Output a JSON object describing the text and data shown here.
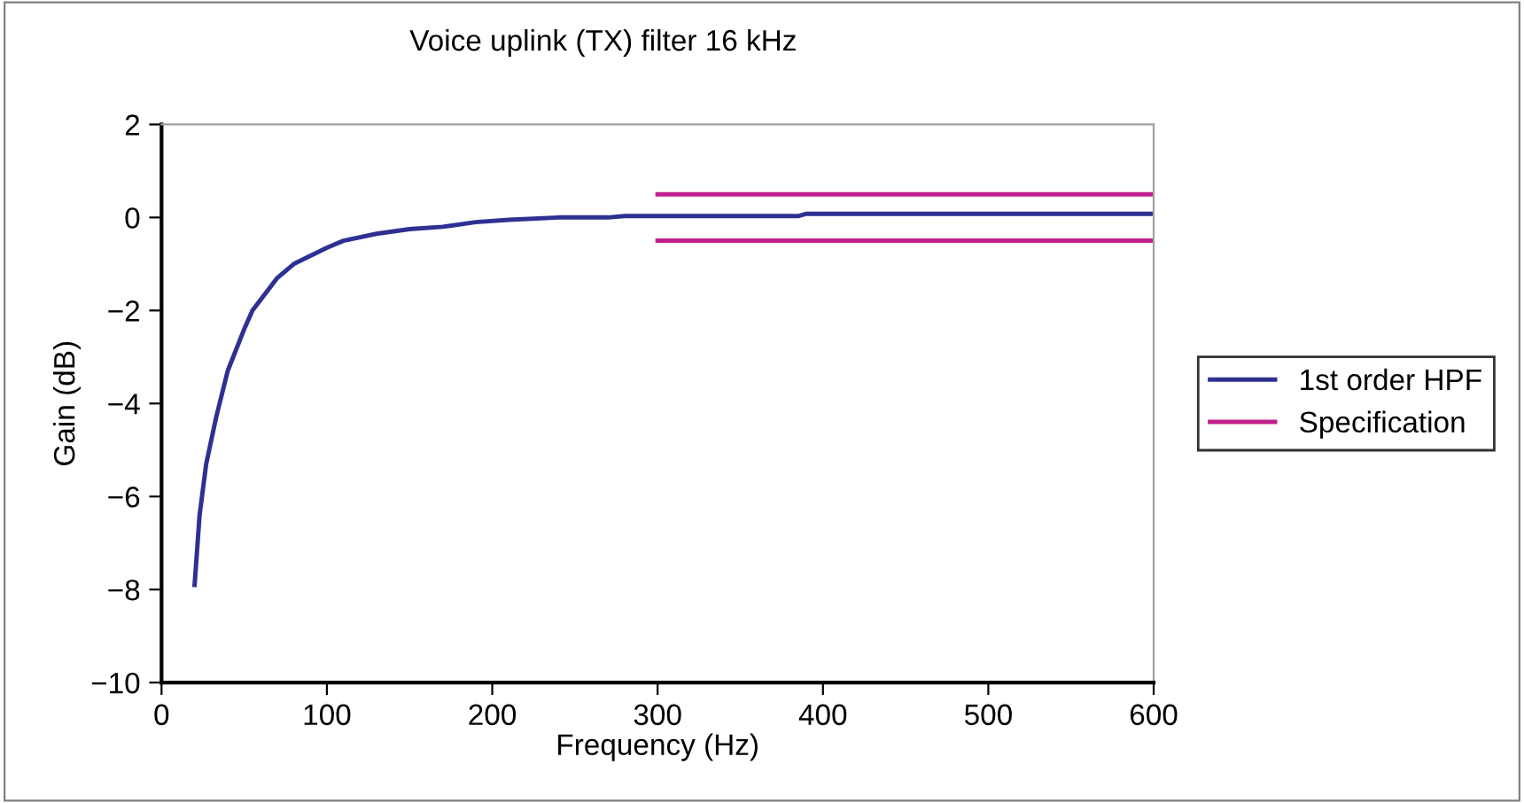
{
  "chart_data": {
    "type": "line",
    "title": "Voice uplink (TX) filter 16 kHz",
    "xlabel": "Frequency (Hz)",
    "ylabel": "Gain (dB)",
    "xlim": [
      0,
      600
    ],
    "xticks": [
      0,
      100,
      200,
      300,
      400,
      500,
      600
    ],
    "ylim": [
      -10,
      2
    ],
    "yticks": [
      {
        "value": -10,
        "label": "−10"
      },
      {
        "value": -8,
        "label": "−8"
      },
      {
        "value": -6,
        "label": "−6"
      },
      {
        "value": -4,
        "label": "−4"
      },
      {
        "value": -2,
        "label": "−2"
      },
      0,
      2
    ],
    "grid": false,
    "legend": "right",
    "marker": "none",
    "line_style": "solid",
    "series": [
      {
        "name": "1st order HPF",
        "color": "#2e3192",
        "x": [
          20,
          23,
          27,
          33,
          40,
          50,
          55,
          70,
          80,
          100,
          110,
          130,
          150,
          170,
          190,
          210,
          240,
          270,
          280,
          385,
          390,
          600
        ],
        "values": [
          -7.9,
          -6.4,
          -5.3,
          -4.3,
          -3.3,
          -2.4,
          -2.0,
          -1.3,
          -1.0,
          -0.65,
          -0.5,
          -0.35,
          -0.25,
          -0.2,
          -0.1,
          -0.05,
          0,
          0,
          0.03,
          0.03,
          0.08,
          0.08
        ]
      },
      {
        "name": "Specification",
        "color": "#c0208c",
        "x": [
          300,
          600
        ],
        "values": [
          0.5,
          0.5
        ]
      },
      {
        "color": "#c0208c",
        "x": [
          300,
          600
        ],
        "values": [
          -0.5,
          -0.5
        ]
      }
    ]
  }
}
